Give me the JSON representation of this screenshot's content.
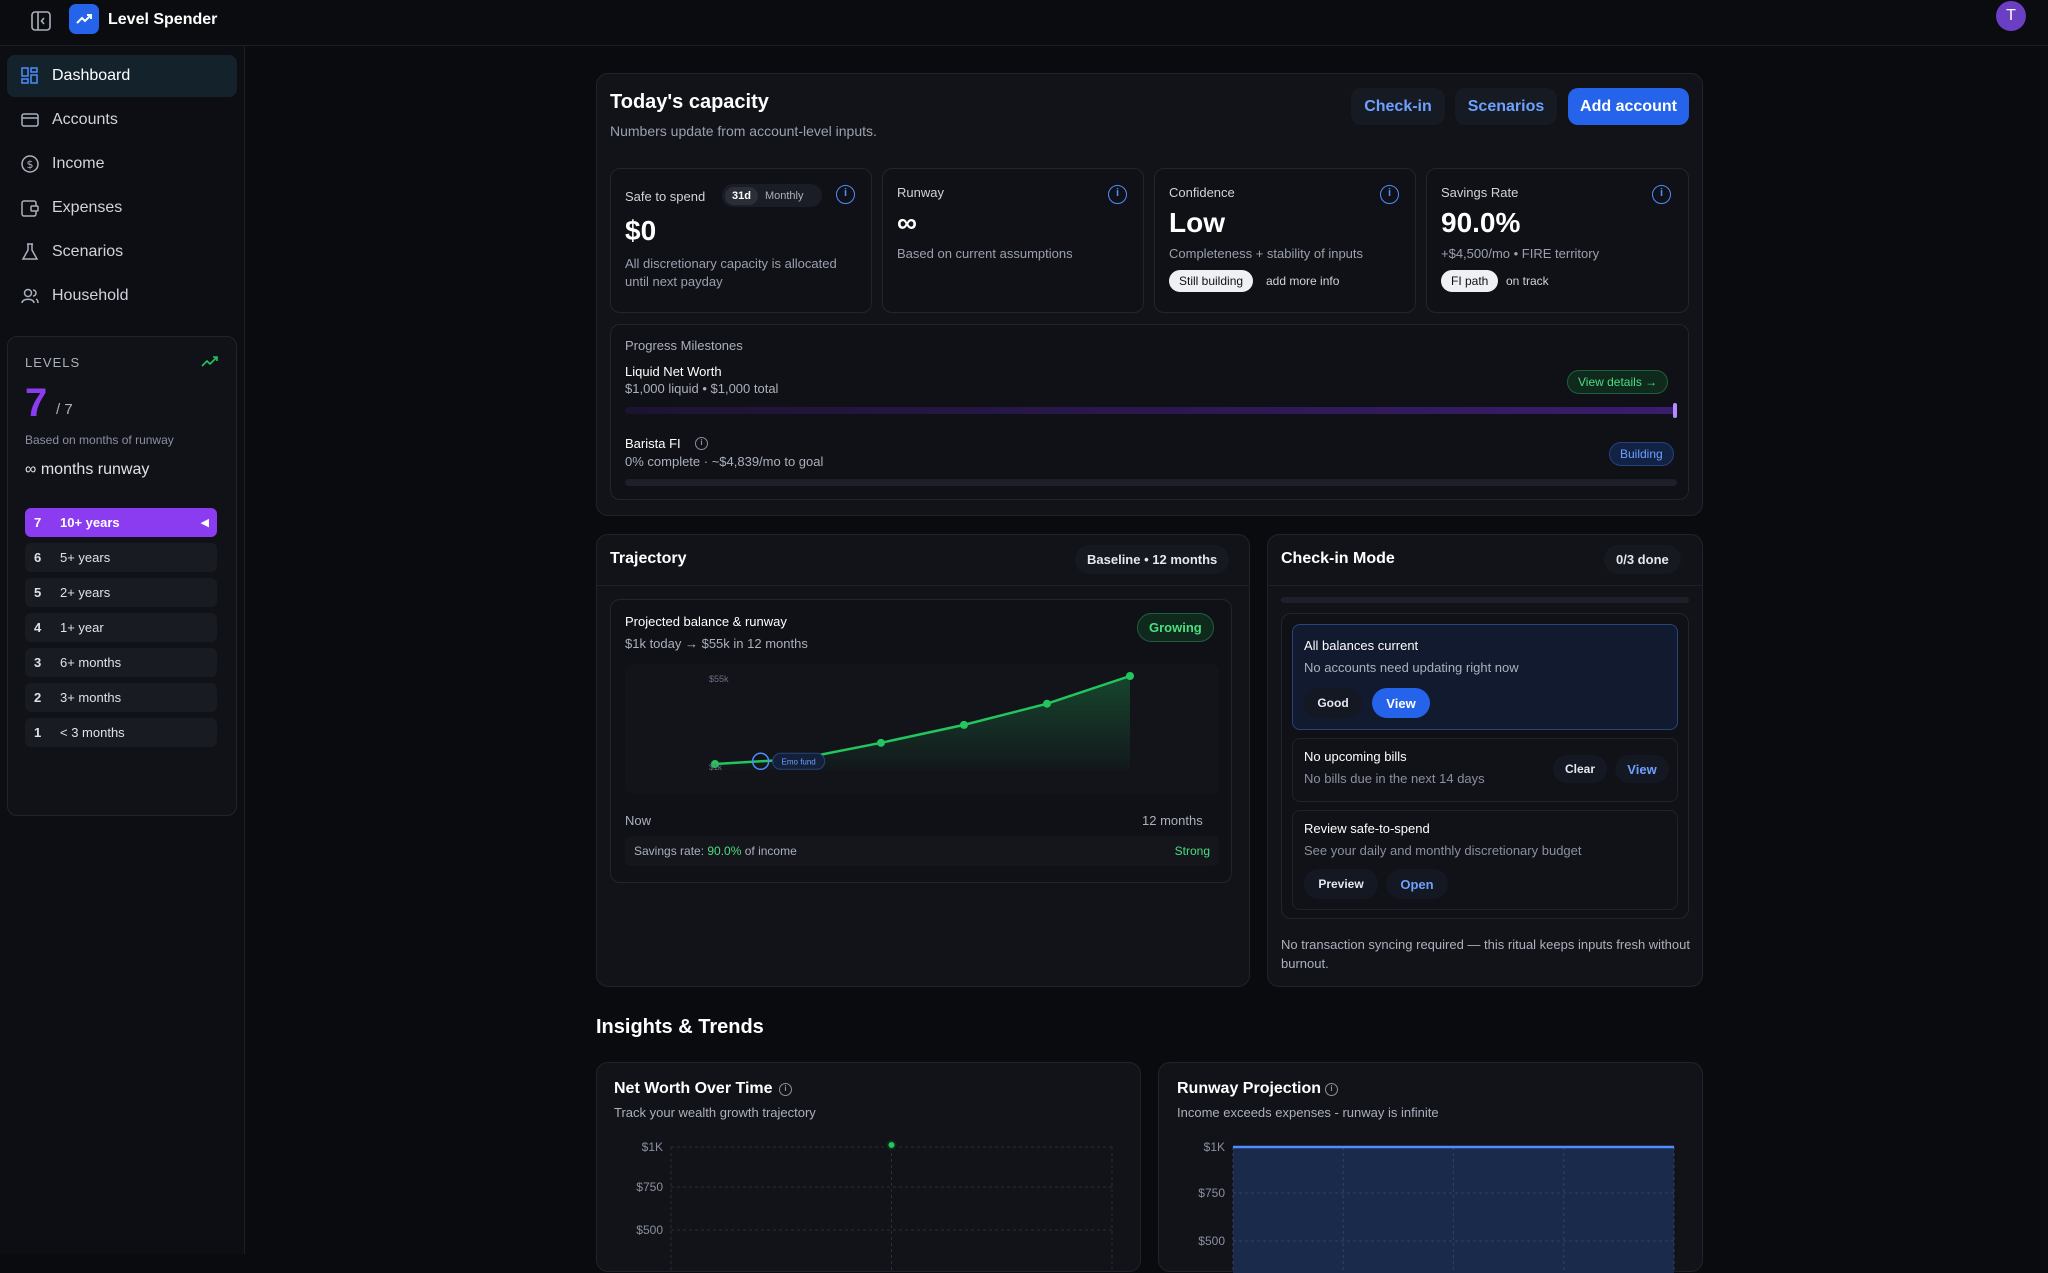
{
  "app": {
    "title": "Level Spender",
    "avatar_initial": "T"
  },
  "sidebar": {
    "items": [
      {
        "label": "Dashboard",
        "icon": "dashboard-icon",
        "active": true
      },
      {
        "label": "Accounts",
        "icon": "wallet-icon"
      },
      {
        "label": "Income",
        "icon": "dollar-circle-icon"
      },
      {
        "label": "Expenses",
        "icon": "receipt-icon"
      },
      {
        "label": "Scenarios",
        "icon": "flask-icon"
      },
      {
        "label": "Household",
        "icon": "users-icon"
      }
    ],
    "levels": {
      "heading": "LEVELS",
      "current": "7",
      "max": "/ 7",
      "caption": "Based on months of runway",
      "runway_text": "∞ months runway",
      "rows": [
        {
          "n": "7",
          "label": "10+ years",
          "active": true
        },
        {
          "n": "6",
          "label": "5+ years"
        },
        {
          "n": "5",
          "label": "2+ years"
        },
        {
          "n": "4",
          "label": "1+ year"
        },
        {
          "n": "3",
          "label": "6+ months"
        },
        {
          "n": "2",
          "label": "3+ months"
        },
        {
          "n": "1",
          "label": "< 3 months"
        }
      ]
    }
  },
  "capacity": {
    "title": "Today's capacity",
    "subtitle": "Numbers update from account-level inputs.",
    "buttons": {
      "checkin": "Check-in",
      "scenarios": "Scenarios",
      "add": "Add account"
    },
    "safe": {
      "label": "Safe to spend",
      "toggle_a": "31d",
      "toggle_b": "Monthly",
      "value": "$0",
      "note_1": "All discretionary capacity is allocated",
      "note_2": "until next payday"
    },
    "runway": {
      "label": "Runway",
      "value": "∞",
      "note": "Based on current assumptions"
    },
    "confidence": {
      "label": "Confidence",
      "value": "Low",
      "note": "Completeness + stability of inputs",
      "badge": "Still building",
      "badge_note": "add more info"
    },
    "savings": {
      "label": "Savings Rate",
      "value": "90.0%",
      "note": "+$4,500/mo • FIRE territory",
      "badge": "FI path",
      "badge_note": "on track"
    },
    "milestones": {
      "heading": "Progress Milestones",
      "items": [
        {
          "title": "Liquid Net Worth",
          "detail": "$1,000 liquid • $1,000 total",
          "action": "View details →",
          "progress": 1.0
        },
        {
          "title": "Barista FI",
          "detail": "0% complete · ~$4,839/mo to goal",
          "badge": "Building",
          "progress": 0.0
        }
      ]
    }
  },
  "trajectory": {
    "title": "Trajectory",
    "badge": "Baseline • 12 months",
    "card_title": "Projected balance & runway",
    "card_sub": "$1k today → $55k in 12 months",
    "status": "Growing",
    "start_label": "Now",
    "end_label": "12 months",
    "y_top_label": "$55k",
    "y_bottom_label": "$1k",
    "marker_label": "Emo fund",
    "savings_prefix": "Savings rate: ",
    "savings_value": "90.0%",
    "savings_suffix": " of income",
    "savings_status": "Strong"
  },
  "checkin": {
    "title": "Check-in Mode",
    "badge": "0/3 done",
    "items": [
      {
        "title": "All balances current",
        "sub": "No accounts need updating right now",
        "btn_a": "Good",
        "btn_b": "View"
      },
      {
        "title": "No upcoming bills",
        "sub": "No bills due in the next 14 days",
        "btn_a": "Clear",
        "btn_b": "View"
      },
      {
        "title": "Review safe-to-spend",
        "sub": "See your daily and monthly discretionary budget",
        "btn_a": "Preview",
        "btn_b": "Open"
      }
    ],
    "footer": "No transaction syncing required — this ritual keeps inputs fresh without burnout."
  },
  "insights": {
    "heading": "Insights & Trends",
    "net_worth": {
      "title": "Net Worth Over Time",
      "sub": "Track your wealth growth trajectory",
      "y_labels": [
        "$1K",
        "$750",
        "$500"
      ]
    },
    "runway": {
      "title": "Runway Projection",
      "sub": "Income exceeds expenses - runway is infinite",
      "y_labels": [
        "$1K",
        "$750",
        "$500"
      ]
    }
  },
  "chart_data": [
    {
      "type": "line",
      "title": "Projected balance & runway",
      "x": [
        "Now",
        "",
        "",
        "",
        "",
        "12 months"
      ],
      "series": [
        {
          "values": [
            1,
            4,
            14,
            25,
            38,
            55
          ]
        }
      ],
      "ylabel": "",
      "xlabel": "",
      "ylim": [
        1,
        55
      ]
    },
    {
      "type": "scatter",
      "title": "Net Worth Over Time",
      "yticks": [
        "$1K",
        "$750",
        "$500"
      ],
      "series": [
        {
          "values": [
            1000
          ]
        }
      ]
    },
    {
      "type": "area",
      "title": "Runway Projection",
      "yticks": [
        "$1K",
        "$750",
        "$500"
      ],
      "series": [
        {
          "values": [
            1000,
            1000,
            1000,
            1000,
            1000,
            1000
          ]
        }
      ]
    }
  ],
  "colors": {
    "accent": "#2563eb",
    "purple": "#8b3cf0",
    "green": "#22c55e"
  }
}
